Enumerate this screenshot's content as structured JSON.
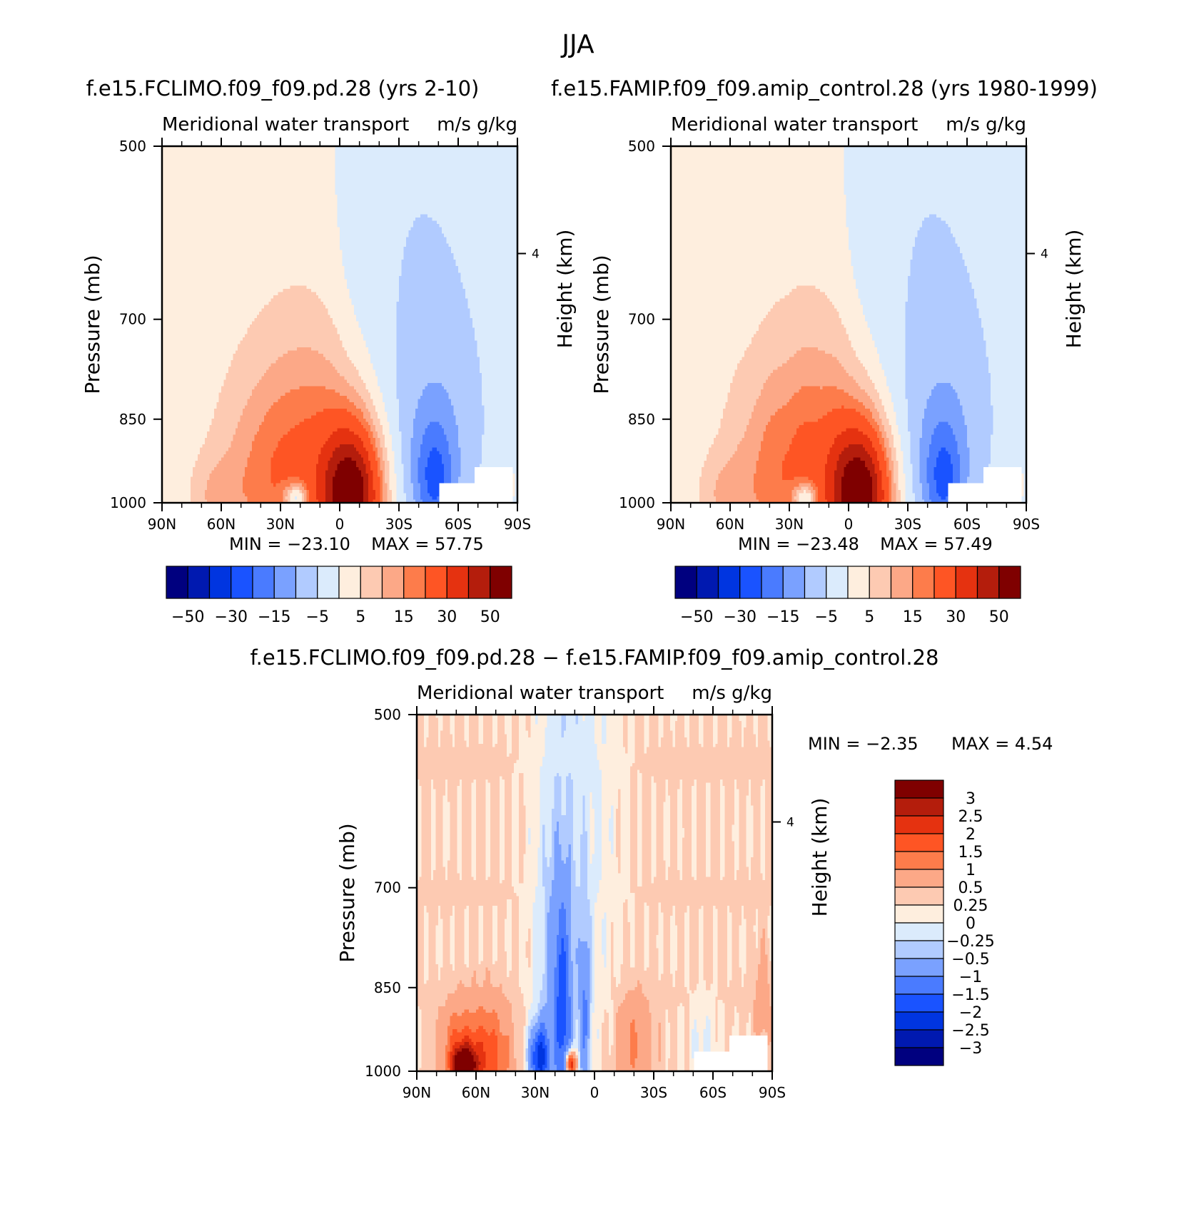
{
  "figure": {
    "title": "JJA"
  },
  "chart_data": [
    {
      "type": "heatmap",
      "title": "f.e15.FCLIMO.f09_f09.pd.28 (yrs 2-10)",
      "subtitle_left": "Meridional water transport",
      "subtitle_right": "m/s g/kg",
      "ylabel": "Pressure (mb)",
      "ylabel_right": "Height (km)",
      "x_ticks": [
        "90N",
        "60N",
        "30N",
        "0",
        "30S",
        "60S",
        "90S"
      ],
      "y_ticks": [
        "500",
        "700",
        "850",
        "1000"
      ],
      "y_ticks_right": [
        "4"
      ],
      "xlim": [
        90,
        -90
      ],
      "ylim": [
        1000,
        500
      ],
      "y_scale": "log",
      "min_text": "MIN = −23.10",
      "max_text": "MAX = 57.75",
      "min": -23.1,
      "max": 57.75,
      "colorbar": {
        "orientation": "horizontal",
        "levels": [
          -50,
          -40,
          -30,
          -20,
          -15,
          -10,
          -5,
          0,
          5,
          10,
          15,
          20,
          30,
          40,
          50
        ],
        "labels": [
          "−50",
          "−30",
          "−15",
          "−5",
          "5",
          "15",
          "30",
          "50"
        ]
      }
    },
    {
      "type": "heatmap",
      "title": "f.e15.FAMIP.f09_f09.amip_control.28 (yrs 1980-1999)",
      "subtitle_left": "Meridional water transport",
      "subtitle_right": "m/s g/kg",
      "ylabel": "Pressure (mb)",
      "ylabel_right": "Height (km)",
      "x_ticks": [
        "90N",
        "60N",
        "30N",
        "0",
        "30S",
        "60S",
        "90S"
      ],
      "y_ticks": [
        "500",
        "700",
        "850",
        "1000"
      ],
      "y_ticks_right": [
        "4"
      ],
      "xlim": [
        90,
        -90
      ],
      "ylim": [
        1000,
        500
      ],
      "y_scale": "log",
      "min_text": "MIN = −23.48",
      "max_text": "MAX = 57.49",
      "min": -23.48,
      "max": 57.49,
      "colorbar": {
        "orientation": "horizontal",
        "levels": [
          -50,
          -40,
          -30,
          -20,
          -15,
          -10,
          -5,
          0,
          5,
          10,
          15,
          20,
          30,
          40,
          50
        ],
        "labels": [
          "−50",
          "−30",
          "−15",
          "−5",
          "5",
          "15",
          "30",
          "50"
        ]
      }
    },
    {
      "type": "heatmap",
      "title": "f.e15.FCLIMO.f09_f09.pd.28 − f.e15.FAMIP.f09_f09.amip_control.28",
      "subtitle_left": "Meridional water transport",
      "subtitle_right": "m/s g/kg",
      "ylabel": "Pressure (mb)",
      "ylabel_right": "Height (km)",
      "x_ticks": [
        "90N",
        "60N",
        "30N",
        "0",
        "30S",
        "60S",
        "90S"
      ],
      "y_ticks": [
        "500",
        "700",
        "850",
        "1000"
      ],
      "y_ticks_right": [
        "4"
      ],
      "xlim": [
        90,
        -90
      ],
      "ylim": [
        1000,
        500
      ],
      "y_scale": "log",
      "min_text": "MIN = −2.35",
      "max_text": "MAX = 4.54",
      "min": -2.35,
      "max": 4.54,
      "colorbar": {
        "orientation": "vertical",
        "levels": [
          -3,
          -2.5,
          -2,
          -1.5,
          -1,
          -0.5,
          -0.25,
          0,
          0.25,
          0.5,
          1,
          1.5,
          2,
          2.5,
          3
        ],
        "labels": [
          "−3",
          "−2.5",
          "−2",
          "−1.5",
          "−1",
          "−0.5",
          "−0.25",
          "0",
          "0.25",
          "0.5",
          "1",
          "1.5",
          "2",
          "2.5",
          "3"
        ]
      }
    }
  ],
  "palette": [
    "#00007f",
    "#0019b0",
    "#0035e0",
    "#1a53ff",
    "#4a7bff",
    "#7aa1ff",
    "#b1cbff",
    "#dbebfc",
    "#feeede",
    "#fdcab2",
    "#fca887",
    "#fd7c4b",
    "#fe5524",
    "#e53210",
    "#b41d0c",
    "#7f0000"
  ]
}
